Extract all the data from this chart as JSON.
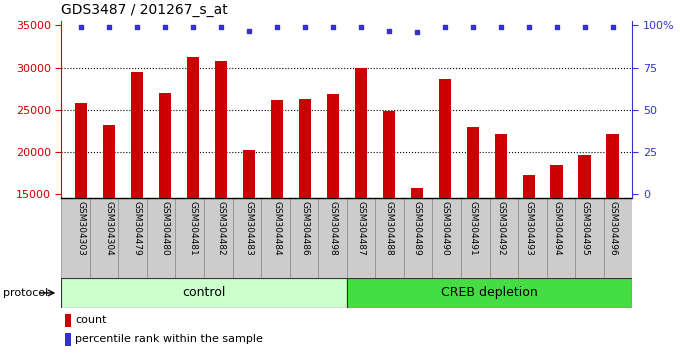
{
  "title": "GDS3487 / 201267_s_at",
  "categories": [
    "GSM304303",
    "GSM304304",
    "GSM304479",
    "GSM304480",
    "GSM304481",
    "GSM304482",
    "GSM304483",
    "GSM304484",
    "GSM304486",
    "GSM304498",
    "GSM304487",
    "GSM304488",
    "GSM304489",
    "GSM304490",
    "GSM304491",
    "GSM304492",
    "GSM304493",
    "GSM304494",
    "GSM304495",
    "GSM304496"
  ],
  "bar_values": [
    25800,
    23200,
    29500,
    27000,
    31200,
    30800,
    20200,
    26100,
    26300,
    26900,
    30000,
    24900,
    15700,
    28700,
    23000,
    22100,
    17200,
    18500,
    19600,
    22100
  ],
  "percentile_values": [
    99,
    99,
    99,
    99,
    99,
    99,
    97,
    99,
    99,
    99,
    99,
    97,
    96,
    99,
    99,
    99,
    99,
    99,
    99,
    99
  ],
  "bar_color": "#cc0000",
  "dot_color": "#3333cc",
  "ylim_left": [
    14500,
    35500
  ],
  "ylim_right": [
    -3.57,
    125
  ],
  "yticks_left": [
    15000,
    20000,
    25000,
    30000,
    35000
  ],
  "yticks_right": [
    0,
    25,
    50,
    75,
    100
  ],
  "ytick_labels_right": [
    "0",
    "25",
    "50",
    "75",
    "100%"
  ],
  "grid_values": [
    20000,
    25000,
    30000
  ],
  "control_count": 10,
  "creb_count": 10,
  "control_label": "control",
  "creb_label": "CREB depletion",
  "protocol_label": "protocol",
  "legend_count_label": "count",
  "legend_percentile_label": "percentile rank within the sample",
  "bg_color": "#ffffff",
  "plot_bg_color": "#ffffff",
  "control_bg": "#ccffcc",
  "creb_bg": "#44dd44",
  "xticklabel_bg": "#cccccc",
  "bar_width": 0.45
}
